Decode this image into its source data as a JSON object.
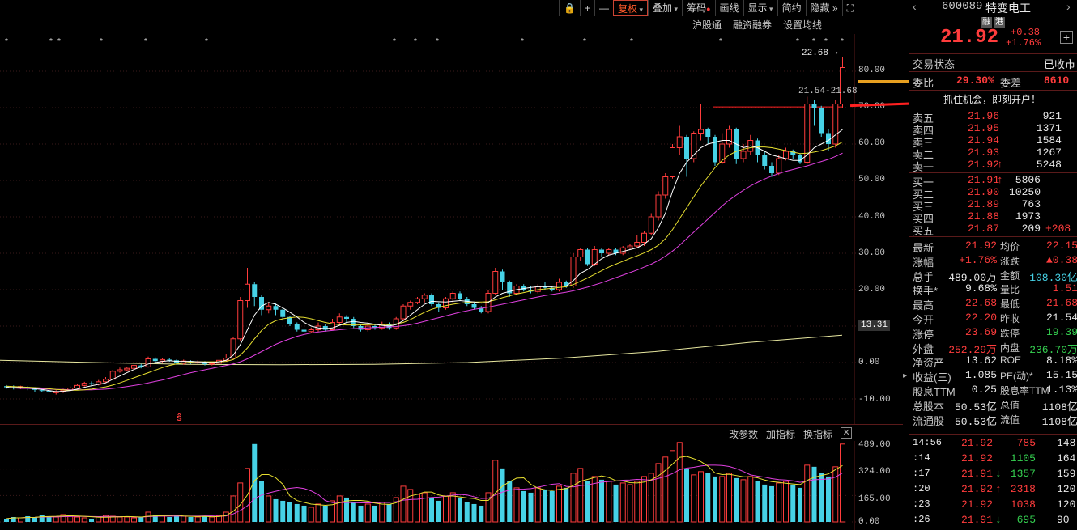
{
  "toolbar": {
    "items": [
      "复权",
      "叠加",
      "筹码",
      "画线",
      "显示",
      "简约",
      "隐藏"
    ],
    "active": "复权"
  },
  "subbar": [
    "沪股通",
    "融资融券",
    "设置均线"
  ],
  "chart": {
    "y_labels": [
      "80.00",
      "70.00",
      "60.00",
      "50.00",
      "40.00",
      "30.00",
      "20.00",
      "0.00",
      "-10.00"
    ],
    "price_tag": "13.31",
    "high_label": "22.68",
    "range_label": "21.54-21.68"
  },
  "volume": {
    "tools": [
      "改参数",
      "加指标",
      "换指标"
    ],
    "y_labels": [
      "489.00",
      "324.00",
      "165.00",
      "0.00"
    ]
  },
  "colors": {
    "up": "#ff3c3c",
    "down": "#46d2e6",
    "ma5": "#ffffff",
    "ma10": "#e8e030",
    "ma20": "#e040e0",
    "ma250": "#e8e8a0"
  },
  "chart_data": {
    "type": "candlestick",
    "y_axis_labels": [
      80,
      70,
      60,
      50,
      40,
      30,
      20,
      0,
      -10
    ],
    "candles": [
      [
        -6.5,
        -6.8,
        -6.2,
        -7.2
      ],
      [
        -6.8,
        -7.0,
        -6.3,
        -7.4
      ],
      [
        -7.0,
        -6.6,
        -6.4,
        -7.3
      ],
      [
        -6.7,
        -7.2,
        -6.5,
        -7.6
      ],
      [
        -7.2,
        -7.5,
        -6.9,
        -8.0
      ],
      [
        -7.6,
        -7.8,
        -7.2,
        -8.2
      ],
      [
        -7.8,
        -8.2,
        -7.5,
        -8.6
      ],
      [
        -8.3,
        -8.0,
        -7.6,
        -8.8
      ],
      [
        -8.0,
        -7.6,
        -7.2,
        -8.4
      ],
      [
        -7.6,
        -7.0,
        -6.6,
        -7.9
      ],
      [
        -7.0,
        -6.3,
        -5.9,
        -7.2
      ],
      [
        -6.3,
        -5.7,
        -5.3,
        -6.6
      ],
      [
        -5.7,
        -6.0,
        -5.2,
        -6.4
      ],
      [
        -6.0,
        -5.3,
        -4.8,
        -6.3
      ],
      [
        -5.3,
        -4.6,
        -4.0,
        -5.6
      ],
      [
        -4.6,
        -2.4,
        -2.0,
        -4.8
      ],
      [
        -2.4,
        -2.0,
        -1.4,
        -2.8
      ],
      [
        -2.0,
        -1.6,
        -1.2,
        -2.4
      ],
      [
        -1.6,
        -0.8,
        -0.4,
        -2.0
      ],
      [
        -0.8,
        -1.2,
        -0.4,
        -1.6
      ],
      [
        -1.2,
        1.0,
        1.6,
        -1.4
      ],
      [
        1.0,
        0.4,
        1.4,
        0.0
      ],
      [
        0.4,
        0.8,
        1.2,
        0.0
      ],
      [
        0.8,
        0.6,
        1.2,
        0.2
      ],
      [
        0.6,
        -0.2,
        0.8,
        -0.6
      ],
      [
        -0.2,
        0.4,
        0.8,
        -0.6
      ],
      [
        0.4,
        0.0,
        0.6,
        -0.4
      ],
      [
        0.0,
        0.2,
        0.6,
        -0.4
      ],
      [
        0.2,
        -0.4,
        0.4,
        -0.8
      ],
      [
        -0.4,
        -0.2,
        0.2,
        -0.8
      ],
      [
        -0.2,
        0.6,
        1.0,
        -0.4
      ],
      [
        0.6,
        1.2,
        2.4,
        0.2
      ],
      [
        1.2,
        6.5,
        7.0,
        0.8
      ],
      [
        6.5,
        17.0,
        18.0,
        6.0
      ],
      [
        17.0,
        21.5,
        26.0,
        15.0
      ],
      [
        21.5,
        18.0,
        22.0,
        15.5
      ],
      [
        18.0,
        14.5,
        18.5,
        13.0
      ],
      [
        14.5,
        15.5,
        16.5,
        13.5
      ],
      [
        15.5,
        14.5,
        16.2,
        13.0
      ],
      [
        14.5,
        12.5,
        14.8,
        11.5
      ],
      [
        12.5,
        10.5,
        12.8,
        10.0
      ],
      [
        10.5,
        9.0,
        11.0,
        8.5
      ],
      [
        9.0,
        8.5,
        9.5,
        8.0
      ],
      [
        8.5,
        9.0,
        9.6,
        8.0
      ],
      [
        9.0,
        10.0,
        11.0,
        8.5
      ],
      [
        10.0,
        9.0,
        10.5,
        8.5
      ],
      [
        9.0,
        11.0,
        12.0,
        8.8
      ],
      [
        11.0,
        12.5,
        13.5,
        10.5
      ],
      [
        12.5,
        12.0,
        13.0,
        11.0
      ],
      [
        12.0,
        10.0,
        12.5,
        9.5
      ],
      [
        10.0,
        9.0,
        10.5,
        8.5
      ],
      [
        9.0,
        10.0,
        11.0,
        8.5
      ],
      [
        10.0,
        9.5,
        10.5,
        9.0
      ],
      [
        9.5,
        10.5,
        11.2,
        9.0
      ],
      [
        10.5,
        9.5,
        11.0,
        9.0
      ],
      [
        9.5,
        12.0,
        12.5,
        9.0
      ],
      [
        12.0,
        15.5,
        16.0,
        11.5
      ],
      [
        15.5,
        16.5,
        17.0,
        14.5
      ],
      [
        16.5,
        17.5,
        18.0,
        16.0
      ],
      [
        17.5,
        18.5,
        19.0,
        16.5
      ],
      [
        18.5,
        16.0,
        19.0,
        15.5
      ],
      [
        16.0,
        15.0,
        16.5,
        14.0
      ],
      [
        15.0,
        17.5,
        18.0,
        14.5
      ],
      [
        17.5,
        19.0,
        19.5,
        16.5
      ],
      [
        19.0,
        17.5,
        19.5,
        17.0
      ],
      [
        17.5,
        16.0,
        18.0,
        15.5
      ],
      [
        16.0,
        15.0,
        16.5,
        14.5
      ],
      [
        15.0,
        14.0,
        15.5,
        13.5
      ],
      [
        14.0,
        19.0,
        20.0,
        13.5
      ],
      [
        19.0,
        25.0,
        26.0,
        18.5
      ],
      [
        25.0,
        22.0,
        25.5,
        20.0
      ],
      [
        22.0,
        19.0,
        22.5,
        18.0
      ],
      [
        19.0,
        21.0,
        21.5,
        18.5
      ],
      [
        21.0,
        20.0,
        21.5,
        19.5
      ],
      [
        20.0,
        19.5,
        21.0,
        19.0
      ],
      [
        19.5,
        21.0,
        21.5,
        19.0
      ],
      [
        21.0,
        20.5,
        22.0,
        20.0
      ],
      [
        20.5,
        20.0,
        21.0,
        19.5
      ],
      [
        20.0,
        22.0,
        23.0,
        19.5
      ],
      [
        22.0,
        21.0,
        22.5,
        20.5
      ],
      [
        21.0,
        29.0,
        30.0,
        20.5
      ],
      [
        29.0,
        31.0,
        31.5,
        28.0
      ],
      [
        31.0,
        27.0,
        31.5,
        26.5
      ],
      [
        27.0,
        31.0,
        32.0,
        26.5
      ],
      [
        31.0,
        30.0,
        31.5,
        29.0
      ],
      [
        30.0,
        31.0,
        31.5,
        29.5
      ],
      [
        31.0,
        30.0,
        31.5,
        29.5
      ],
      [
        30.0,
        31.5,
        32.0,
        29.5
      ],
      [
        31.5,
        32.0,
        32.5,
        31.0
      ],
      [
        32.0,
        33.0,
        35.0,
        31.5
      ],
      [
        33.0,
        35.5,
        36.0,
        32.0
      ],
      [
        35.5,
        40.0,
        41.0,
        35.0
      ],
      [
        40.0,
        46.0,
        47.0,
        39.0
      ],
      [
        46.0,
        51.0,
        52.0,
        45.0
      ],
      [
        51.0,
        59.0,
        60.0,
        50.5
      ],
      [
        59.0,
        62.0,
        65.0,
        57.0
      ],
      [
        62.0,
        56.0,
        62.5,
        51.0
      ],
      [
        56.0,
        63.0,
        63.5,
        55.0
      ],
      [
        63.0,
        64.0,
        71.0,
        61.0
      ],
      [
        64.0,
        62.0,
        64.5,
        60.0
      ],
      [
        62.0,
        55.0,
        62.5,
        54.0
      ],
      [
        55.0,
        60.0,
        63.0,
        54.5
      ],
      [
        60.0,
        64.0,
        65.0,
        59.0
      ],
      [
        64.0,
        56.0,
        64.5,
        54.5
      ],
      [
        56.0,
        58.0,
        60.0,
        55.0
      ],
      [
        58.0,
        61.0,
        62.5,
        57.0
      ],
      [
        61.0,
        57.0,
        61.5,
        55.0
      ],
      [
        57.0,
        54.0,
        58.0,
        53.0
      ],
      [
        54.0,
        52.0,
        55.0,
        51.0
      ],
      [
        52.0,
        56.0,
        57.0,
        51.5
      ],
      [
        56.0,
        58.0,
        59.0,
        55.5
      ],
      [
        58.0,
        57.0,
        58.5,
        56.0
      ],
      [
        57.0,
        55.0,
        57.5,
        54.5
      ],
      [
        55.0,
        71.0,
        73.0,
        54.5
      ],
      [
        71.0,
        70.0,
        72.0,
        65.0
      ],
      [
        70.0,
        63.0,
        70.5,
        62.0
      ],
      [
        63.0,
        60.0,
        64.0,
        58.0
      ],
      [
        60.0,
        71.0,
        72.0,
        59.0
      ],
      [
        71.0,
        81.0,
        84.0,
        70.0
      ]
    ],
    "ma5": [
      -6.8,
      -6.9,
      -6.9,
      -7.0,
      -7.2,
      -7.4,
      -7.7,
      -8.0,
      -7.9,
      -7.7,
      -7.3,
      -6.8,
      -6.4,
      -6.0,
      -5.6,
      -4.6,
      -3.7,
      -2.8,
      -1.9,
      -1.2,
      -0.4,
      0.0,
      0.3,
      0.5,
      0.3,
      0.3,
      0.3,
      0.2,
      0.1,
      0.0,
      0.2,
      0.6,
      2.0,
      4.9,
      9.0,
      13.0,
      15.5,
      16.5,
      16.0,
      15.0,
      13.8,
      12.5,
      11.0,
      10.0,
      9.5,
      9.3,
      9.5,
      10.2,
      11.0,
      11.3,
      11.0,
      10.8,
      10.5,
      10.2,
      10.0,
      10.4,
      11.5,
      13.0,
      14.5,
      16.0,
      16.8,
      16.7,
      16.6,
      16.8,
      17.0,
      16.8,
      16.6,
      16.3,
      16.5,
      18.0,
      19.0,
      19.5,
      20.0,
      20.3,
      20.6,
      20.8,
      20.8,
      20.8,
      21.0,
      21.0,
      22.5,
      24.5,
      25.5,
      27.0,
      28.5,
      29.5,
      30.0,
      30.5,
      31.0,
      31.5,
      32.5,
      34.0,
      37.0,
      41.0,
      47.0,
      52.0,
      55.0,
      57.0,
      59.0,
      60.0,
      60.5,
      61.0,
      61.0,
      60.0,
      59.0,
      59.5,
      59.0,
      58.0,
      57.0,
      56.5,
      56.0,
      55.5,
      55.5,
      57.0,
      59.0,
      60.0,
      61.0,
      62.5,
      64.0
    ],
    "ma10": [
      -6.5,
      -6.6,
      -6.7,
      -6.8,
      -6.9,
      -7.0,
      -7.2,
      -7.4,
      -7.5,
      -7.6,
      -7.6,
      -7.5,
      -7.3,
      -7.0,
      -6.7,
      -6.2,
      -5.6,
      -4.9,
      -4.2,
      -3.5,
      -2.8,
      -2.1,
      -1.4,
      -0.8,
      -0.4,
      -0.1,
      0.1,
      0.2,
      0.2,
      0.2,
      0.2,
      0.3,
      0.8,
      2.0,
      4.0,
      6.5,
      8.8,
      10.5,
      11.5,
      12.0,
      12.3,
      12.5,
      12.4,
      12.0,
      11.5,
      11.0,
      10.6,
      10.4,
      10.3,
      10.3,
      10.3,
      10.4,
      10.4,
      10.4,
      10.4,
      10.6,
      11.0,
      11.8,
      12.8,
      13.8,
      14.6,
      15.2,
      15.6,
      16.0,
      16.3,
      16.5,
      16.6,
      16.6,
      16.7,
      17.2,
      17.8,
      18.3,
      18.8,
      19.2,
      19.6,
      20.0,
      20.2,
      20.4,
      20.6,
      20.8,
      21.4,
      22.3,
      23.2,
      24.2,
      25.2,
      26.2,
      27.0,
      27.8,
      28.6,
      29.3,
      30.1,
      31.0,
      32.2,
      34.0,
      36.5,
      39.5,
      42.5,
      45.5,
      48.5,
      51.0,
      53.5,
      55.5,
      57.0,
      58.0,
      58.6,
      59.0,
      59.2,
      59.2,
      59.0,
      58.6,
      58.2,
      57.8,
      57.4,
      57.5,
      57.8,
      58.2,
      58.8,
      59.5,
      60.6
    ],
    "ma20": [
      -7.0,
      -7.0,
      -7.1,
      -7.1,
      -7.2,
      -7.2,
      -7.3,
      -7.4,
      -7.4,
      -7.5,
      -7.5,
      -7.5,
      -7.5,
      -7.4,
      -7.3,
      -7.1,
      -6.9,
      -6.6,
      -6.3,
      -6.0,
      -5.6,
      -5.2,
      -4.8,
      -4.3,
      -3.8,
      -3.3,
      -2.8,
      -2.4,
      -2.0,
      -1.6,
      -1.2,
      -0.8,
      -0.4,
      0.2,
      1.0,
      2.0,
      3.0,
      4.0,
      5.0,
      5.8,
      6.5,
      7.2,
      7.7,
      8.1,
      8.4,
      8.6,
      8.8,
      9.0,
      9.2,
      9.3,
      9.4,
      9.5,
      9.6,
      9.7,
      9.8,
      9.9,
      10.1,
      10.4,
      10.8,
      11.3,
      11.8,
      12.3,
      12.8,
      13.3,
      13.8,
      14.2,
      14.6,
      14.9,
      15.2,
      15.6,
      16.0,
      16.4,
      16.8,
      17.2,
      17.6,
      18.0,
      18.4,
      18.7,
      19.0,
      19.3,
      19.7,
      20.2,
      20.7,
      21.3,
      21.9,
      22.6,
      23.3,
      24.0,
      24.7,
      25.4,
      26.2,
      27.0,
      28.0,
      29.2,
      30.6,
      32.2,
      34.0,
      35.8,
      37.6,
      39.4,
      41.2,
      43.0,
      44.6,
      46.0,
      47.3,
      48.5,
      49.5,
      50.4,
      51.2,
      51.9,
      52.5,
      53.0,
      53.5,
      54.0,
      54.6,
      55.2,
      55.8,
      56.6,
      57.5
    ],
    "ma250": [
      0.6,
      0.0,
      -0.5,
      -0.6,
      -0.5,
      0.0,
      1.2,
      3.0,
      5.5,
      7.5
    ],
    "volumes": [
      20,
      30,
      25,
      35,
      30,
      40,
      35,
      30,
      45,
      40,
      30,
      25,
      20,
      30,
      40,
      35,
      30,
      30,
      25,
      30,
      60,
      40,
      35,
      30,
      40,
      35,
      30,
      30,
      35,
      30,
      40,
      60,
      160,
      240,
      330,
      480,
      250,
      160,
      140,
      130,
      120,
      110,
      100,
      90,
      110,
      100,
      130,
      160,
      150,
      120,
      100,
      110,
      100,
      120,
      110,
      150,
      220,
      200,
      170,
      180,
      150,
      130,
      160,
      180,
      150,
      120,
      110,
      100,
      180,
      380,
      330,
      250,
      210,
      190,
      180,
      210,
      200,
      190,
      220,
      210,
      300,
      330,
      250,
      280,
      260,
      250,
      230,
      240,
      230,
      250,
      280,
      300,
      360,
      400,
      440,
      490,
      330,
      290,
      310,
      300,
      280,
      280,
      300,
      270,
      260,
      280,
      250,
      230,
      220,
      240,
      250,
      230,
      210,
      350,
      340,
      300,
      280,
      340,
      480
    ],
    "volume_ymax": 489
  },
  "panel": {
    "code": "600089",
    "name": "特变电工",
    "badges": [
      "融",
      "港"
    ],
    "price": "21.92",
    "change": "+0.38",
    "change_pct": "+1.76%",
    "trade_status_label": "交易状态",
    "trade_status_value": "已收市",
    "weibi_label": "委比",
    "weibi_value": "29.30%",
    "weicha_label": "委差",
    "weicha_value": "8610",
    "promo": "抓住机会，即刻开户！",
    "asks": [
      {
        "label": "卖五",
        "price": "21.96",
        "vol": "921",
        "arrow": ""
      },
      {
        "label": "卖四",
        "price": "21.95",
        "vol": "1371",
        "arrow": ""
      },
      {
        "label": "卖三",
        "price": "21.94",
        "vol": "1584",
        "arrow": ""
      },
      {
        "label": "卖二",
        "price": "21.93",
        "vol": "1267",
        "arrow": ""
      },
      {
        "label": "卖一",
        "price": "21.92",
        "vol": "5248",
        "arrow": "↑"
      }
    ],
    "bids": [
      {
        "label": "买一",
        "price": "21.91",
        "vol": "5806",
        "arrow": "↑",
        "extra": ""
      },
      {
        "label": "买二",
        "price": "21.90",
        "vol": "10250",
        "arrow": "",
        "extra": ""
      },
      {
        "label": "买三",
        "price": "21.89",
        "vol": "763",
        "arrow": "",
        "extra": ""
      },
      {
        "label": "买四",
        "price": "21.88",
        "vol": "1973",
        "arrow": "",
        "extra": ""
      },
      {
        "label": "买五",
        "price": "21.87",
        "vol": "209",
        "arrow": "",
        "extra": "+208"
      }
    ],
    "stats": [
      {
        "l1": "最新",
        "v1": "21.92",
        "c1": "red",
        "l2": "均价",
        "v2": "22.15",
        "c2": "red"
      },
      {
        "l1": "涨幅",
        "v1": "+1.76%",
        "c1": "red",
        "l2": "涨跌",
        "v2": "▲0.38",
        "c2": "red"
      },
      {
        "l1": "总手",
        "v1": "489.00万",
        "c1": "white",
        "l2": "金额",
        "v2": "108.30亿",
        "c2": "cyan"
      },
      {
        "l1": "换手*",
        "v1": "9.68%",
        "c1": "white",
        "l2": "量比",
        "v2": "1.51",
        "c2": "red"
      },
      {
        "l1": "最高",
        "v1": "22.68",
        "c1": "red",
        "l2": "最低",
        "v2": "21.68",
        "c2": "red"
      },
      {
        "l1": "今开",
        "v1": "22.20",
        "c1": "red",
        "l2": "昨收",
        "v2": "21.54",
        "c2": "white"
      },
      {
        "l1": "涨停",
        "v1": "23.69",
        "c1": "red",
        "l2": "跌停",
        "v2": "19.39",
        "c2": "green"
      },
      {
        "l1": "外盘",
        "v1": "252.29万",
        "c1": "red",
        "l2": "内盘",
        "v2": "236.70万",
        "c2": "green"
      },
      {
        "l1": "净资产",
        "v1": "13.62",
        "c1": "white",
        "l2": "ROE",
        "v2": "8.18%",
        "c2": "white"
      },
      {
        "l1": "收益(三)",
        "v1": "1.085",
        "c1": "white",
        "l2": "PE(动)*",
        "v2": "15.15",
        "c2": "white"
      },
      {
        "l1": "股息TTM",
        "v1": "0.25",
        "c1": "white",
        "l2": "股息率TTM",
        "v2": "1.13%",
        "c2": "white"
      },
      {
        "l1": "总股本",
        "v1": "50.53亿",
        "c1": "white",
        "l2": "总值",
        "v2": "1108亿",
        "c2": "white"
      },
      {
        "l1": "流通股",
        "v1": "50.53亿",
        "c1": "white",
        "l2": "流值",
        "v2": "1108亿",
        "c2": "white"
      }
    ],
    "ticks": [
      {
        "time": "14:56",
        "price": "21.92",
        "arrow": "",
        "vol": "785",
        "vcolor": "red",
        "n": "148"
      },
      {
        "time": ":14",
        "price": "21.92",
        "arrow": "",
        "vol": "1105",
        "vcolor": "green",
        "n": "164"
      },
      {
        "time": ":17",
        "price": "21.91",
        "arrow": "↓",
        "vol": "1357",
        "vcolor": "green",
        "n": "159"
      },
      {
        "time": ":20",
        "price": "21.92",
        "arrow": "↑",
        "vol": "2318",
        "vcolor": "red",
        "n": "120"
      },
      {
        "time": ":23",
        "price": "21.92",
        "arrow": "",
        "vol": "1038",
        "vcolor": "red",
        "n": "120"
      },
      {
        "time": ":26",
        "price": "21.91",
        "arrow": "↓",
        "vol": "695",
        "vcolor": "green",
        "n": "90"
      }
    ]
  }
}
